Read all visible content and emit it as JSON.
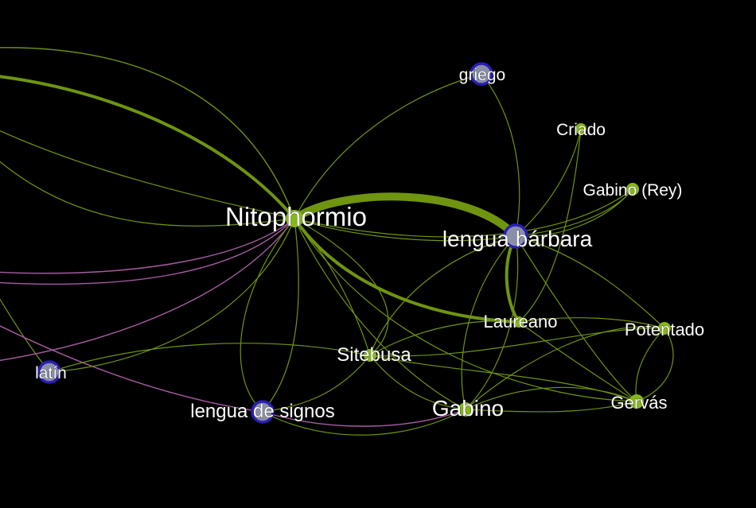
{
  "graph": {
    "nodes": [
      {
        "id": "nitophormio",
        "label": "Nitophormio",
        "kind": "character",
        "color": "#86b81a"
      },
      {
        "id": "lengua-barbara",
        "label": "lengua bárbara",
        "kind": "language",
        "color": "#2a1fb5"
      },
      {
        "id": "griego",
        "label": "griego",
        "kind": "language",
        "color": "#2a1fb5"
      },
      {
        "id": "criado",
        "label": "Criado",
        "kind": "character",
        "color": "#86b81a"
      },
      {
        "id": "gabino-rey",
        "label": "Gabino (Rey)",
        "kind": "character",
        "color": "#86b81a"
      },
      {
        "id": "laureano",
        "label": "Laureano",
        "kind": "character",
        "color": "#86b81a"
      },
      {
        "id": "potentado",
        "label": "Potentado",
        "kind": "character",
        "color": "#86b81a"
      },
      {
        "id": "sitebusa",
        "label": "Sitebusa",
        "kind": "character",
        "color": "#86b81a"
      },
      {
        "id": "gabino",
        "label": "Gabino",
        "kind": "character",
        "color": "#86b81a"
      },
      {
        "id": "gervas",
        "label": "Gervás",
        "kind": "character",
        "color": "#86b81a"
      },
      {
        "id": "latin",
        "label": "latín",
        "kind": "language",
        "color": "#2a1fb5"
      },
      {
        "id": "lengua-signos",
        "label": "lengua de signos",
        "kind": "language",
        "color": "#2a1fb5"
      }
    ],
    "colors": {
      "background": "#000000",
      "character_node": "#86b81a",
      "language_ring": "#2a1fb5",
      "edge_green": "#6f9410",
      "edge_pink": "#a85ca3",
      "label": "#ffffff"
    }
  }
}
